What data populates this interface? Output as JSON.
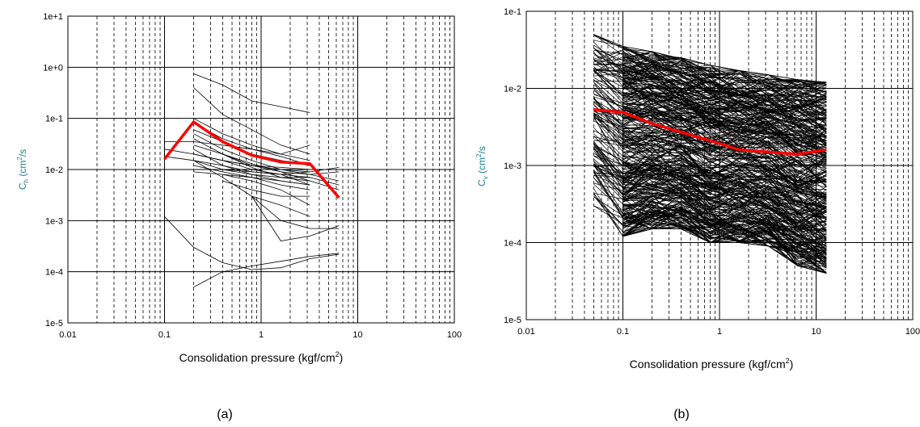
{
  "chart_data": [
    {
      "type": "line",
      "panel_label": "(a)",
      "title": "",
      "xlabel": "Consolidation pressure (kgf/cm",
      "xlabel_sup": "2",
      "xlabel_end": ")",
      "ylabel_main": "C",
      "ylabel_sub": "h",
      "ylabel_rest": " (cm",
      "ylabel_sup": "2",
      "ylabel_end": "/s",
      "xscale": "log",
      "yscale": "log",
      "xlim": [
        0.01,
        100
      ],
      "ylim": [
        1e-05,
        10
      ],
      "xticks": [
        {
          "v": 0.01,
          "label": "0.01"
        },
        {
          "v": 0.1,
          "label": "0.1"
        },
        {
          "v": 1,
          "label": "1"
        },
        {
          "v": 10,
          "label": "10"
        },
        {
          "v": 100,
          "label": "100"
        }
      ],
      "yticks": [
        {
          "v": 1e-05,
          "label": "1e-5"
        },
        {
          "v": 0.0001,
          "label": "1e-4"
        },
        {
          "v": 0.001,
          "label": "1e-3"
        },
        {
          "v": 0.01,
          "label": "1e-2"
        },
        {
          "v": 0.1,
          "label": "1e-1"
        },
        {
          "v": 1,
          "label": "1e+0"
        },
        {
          "v": 10,
          "label": "1e+1"
        }
      ],
      "grid": {
        "major": "solid",
        "minor": "dashed"
      },
      "colors": {
        "samples": "#000000",
        "average": "#ff0000",
        "labels": "#1a7f8e",
        "ticks": "#000000"
      },
      "samples_line_count_estimate": 40,
      "series": [
        {
          "role": "samples",
          "x": [
            0.2,
            0.4,
            0.8,
            1.6,
            3.2
          ],
          "y": [
            0.75,
            0.45,
            0.22,
            0.17,
            0.13
          ]
        },
        {
          "role": "samples",
          "x": [
            0.2,
            0.4,
            0.8,
            1.6,
            3.2
          ],
          "y": [
            0.4,
            0.12,
            0.06,
            0.03,
            0.02
          ]
        },
        {
          "role": "samples",
          "x": [
            0.1,
            0.2,
            0.4,
            0.8,
            1.6,
            3.2
          ],
          "y": [
            0.035,
            0.035,
            0.03,
            0.025,
            0.02,
            0.03
          ]
        },
        {
          "role": "samples",
          "x": [
            0.1,
            0.2,
            0.4,
            0.8,
            1.6,
            3.2
          ],
          "y": [
            0.025,
            0.02,
            0.015,
            0.012,
            0.011,
            0.01
          ]
        },
        {
          "role": "samples",
          "x": [
            0.1,
            0.2,
            0.4,
            0.8,
            1.6,
            3.2
          ],
          "y": [
            0.018,
            0.015,
            0.012,
            0.009,
            0.008,
            0.007
          ]
        },
        {
          "role": "samples",
          "x": [
            0.2,
            0.4,
            0.8,
            1.6,
            3.2
          ],
          "y": [
            0.06,
            0.035,
            0.02,
            0.015,
            0.012
          ]
        },
        {
          "role": "samples",
          "x": [
            0.2,
            0.4,
            0.8,
            1.6,
            3.2
          ],
          "y": [
            0.05,
            0.025,
            0.015,
            0.01,
            0.009
          ]
        },
        {
          "role": "samples",
          "x": [
            0.2,
            0.4,
            0.8,
            1.6,
            3.2
          ],
          "y": [
            0.03,
            0.02,
            0.013,
            0.009,
            0.006
          ]
        },
        {
          "role": "samples",
          "x": [
            0.2,
            0.4,
            0.8,
            1.6,
            3.2
          ],
          "y": [
            0.02,
            0.015,
            0.01,
            0.008,
            0.005
          ]
        },
        {
          "role": "samples",
          "x": [
            0.2,
            0.4,
            0.8,
            1.6,
            3.2
          ],
          "y": [
            0.012,
            0.009,
            0.007,
            0.005,
            0.004
          ]
        },
        {
          "role": "samples",
          "x": [
            0.2,
            0.4,
            0.8,
            1.6,
            3.2
          ],
          "y": [
            0.015,
            0.007,
            0.003,
            0.002,
            0.0012
          ]
        },
        {
          "role": "samples",
          "x": [
            0.2,
            0.4,
            0.8,
            1.6,
            3.2,
            6.4
          ],
          "y": [
            0.04,
            0.02,
            0.012,
            0.009,
            0.008,
            0.009
          ]
        },
        {
          "role": "samples",
          "x": [
            0.2,
            0.4,
            0.8,
            1.6,
            3.2,
            6.4
          ],
          "y": [
            0.025,
            0.012,
            0.008,
            0.007,
            0.007,
            0.005
          ]
        },
        {
          "role": "samples",
          "x": [
            0.4,
            0.8,
            1.6,
            3.2,
            6.4
          ],
          "y": [
            0.01,
            0.009,
            0.008,
            0.009,
            0.011
          ]
        },
        {
          "role": "samples",
          "x": [
            0.4,
            0.8,
            1.6,
            3.2,
            6.4
          ],
          "y": [
            0.02,
            0.011,
            0.007,
            0.006,
            0.004
          ]
        },
        {
          "role": "samples",
          "x": [
            0.4,
            0.8,
            1.6,
            3.2
          ],
          "y": [
            0.006,
            0.004,
            0.003,
            0.003
          ]
        },
        {
          "role": "samples",
          "x": [
            0.8,
            1.6,
            3.2,
            6.4
          ],
          "y": [
            0.003,
            0.0004,
            0.0005,
            0.0008
          ]
        },
        {
          "role": "samples",
          "x": [
            0.8,
            1.6,
            3.2,
            6.4
          ],
          "y": [
            0.003,
            0.001,
            0.0007,
            0.0007
          ]
        },
        {
          "role": "samples",
          "x": [
            0.1,
            0.2,
            0.4,
            0.8,
            1.6,
            3.2,
            6.4
          ],
          "y": [
            0.0012,
            0.0003,
            0.00015,
            0.00011,
            0.00012,
            0.00018,
            0.00022
          ]
        },
        {
          "role": "samples",
          "x": [
            0.2,
            0.4,
            0.8,
            1.6,
            3.2,
            6.4
          ],
          "y": [
            5e-05,
            0.0001,
            0.00013,
            0.00016,
            0.0002,
            0.00023
          ]
        },
        {
          "role": "samples",
          "x": [
            0.2,
            0.4,
            0.8,
            1.6,
            3.2
          ],
          "y": [
            0.1,
            0.05,
            0.03,
            0.02,
            0.015
          ]
        },
        {
          "role": "samples",
          "x": [
            0.2,
            0.4,
            0.8,
            1.6,
            3.2
          ],
          "y": [
            0.08,
            0.04,
            0.025,
            0.018,
            0.012
          ]
        },
        {
          "role": "samples",
          "x": [
            0.2,
            0.4,
            0.8,
            1.6,
            3.2
          ],
          "y": [
            0.015,
            0.01,
            0.008,
            0.006,
            0.005
          ]
        },
        {
          "role": "samples",
          "x": [
            0.2,
            0.4,
            0.8,
            1.6,
            3.2
          ],
          "y": [
            0.009,
            0.008,
            0.007,
            0.006,
            0.005
          ]
        },
        {
          "role": "samples",
          "x": [
            0.4,
            0.8,
            1.6,
            3.2,
            6.4
          ],
          "y": [
            0.015,
            0.012,
            0.01,
            0.008,
            0.006
          ]
        },
        {
          "role": "samples",
          "x": [
            0.4,
            0.8,
            1.6,
            3.2
          ],
          "y": [
            0.008,
            0.006,
            0.004,
            0.002
          ]
        },
        {
          "role": "average",
          "x": [
            0.1,
            0.2,
            0.4,
            0.8,
            1.6,
            3.2,
            6.4
          ],
          "y": [
            0.016,
            0.085,
            0.035,
            0.019,
            0.014,
            0.013,
            0.0028
          ]
        }
      ]
    },
    {
      "type": "line",
      "panel_label": "(b)",
      "title": "",
      "xlabel": "Consolidation pressure (kgf/cm",
      "xlabel_sup": "2",
      "xlabel_end": ")",
      "ylabel_main": "C",
      "ylabel_sub": "v",
      "ylabel_rest": " (cm",
      "ylabel_sup": "2",
      "ylabel_end": "/s",
      "xscale": "log",
      "yscale": "log",
      "xlim": [
        0.01,
        100
      ],
      "ylim": [
        1e-05,
        0.1
      ],
      "xticks": [
        {
          "v": 0.01,
          "label": "0.01"
        },
        {
          "v": 0.1,
          "label": "0.1"
        },
        {
          "v": 1,
          "label": "1"
        },
        {
          "v": 10,
          "label": "10"
        },
        {
          "v": 100,
          "label": "100"
        }
      ],
      "yticks": [
        {
          "v": 1e-05,
          "label": "1e-5"
        },
        {
          "v": 0.0001,
          "label": "1e-4"
        },
        {
          "v": 0.001,
          "label": "1e-3"
        },
        {
          "v": 0.01,
          "label": "1e-2"
        },
        {
          "v": 0.1,
          "label": "1e-1"
        }
      ],
      "grid": {
        "major": "solid",
        "minor": "dashed"
      },
      "colors": {
        "samples": "#000000",
        "average": "#ff0000",
        "labels": "#1a7f8e",
        "ticks": "#000000"
      },
      "samples_line_count_estimate": 400,
      "samples_pressures": [
        0.05,
        0.1,
        0.2,
        0.4,
        0.8,
        1.6,
        3.2,
        6.4,
        12.8
      ],
      "samples_envelope_upper": [
        0.05,
        0.035,
        0.03,
        0.025,
        0.02,
        0.017,
        0.015,
        0.013,
        0.012
      ],
      "samples_envelope_lower": [
        0.0003,
        0.00012,
        0.00015,
        0.00015,
        0.0001,
        0.0001,
        9e-05,
        5e-05,
        4e-05
      ],
      "series": [
        {
          "role": "average",
          "x": [
            0.05,
            0.1,
            0.2,
            0.4,
            0.8,
            1.6,
            3.2,
            6.4,
            12.8
          ],
          "y": [
            0.0053,
            0.0049,
            0.0035,
            0.0027,
            0.0021,
            0.0016,
            0.0015,
            0.0014,
            0.0016
          ]
        }
      ]
    }
  ]
}
